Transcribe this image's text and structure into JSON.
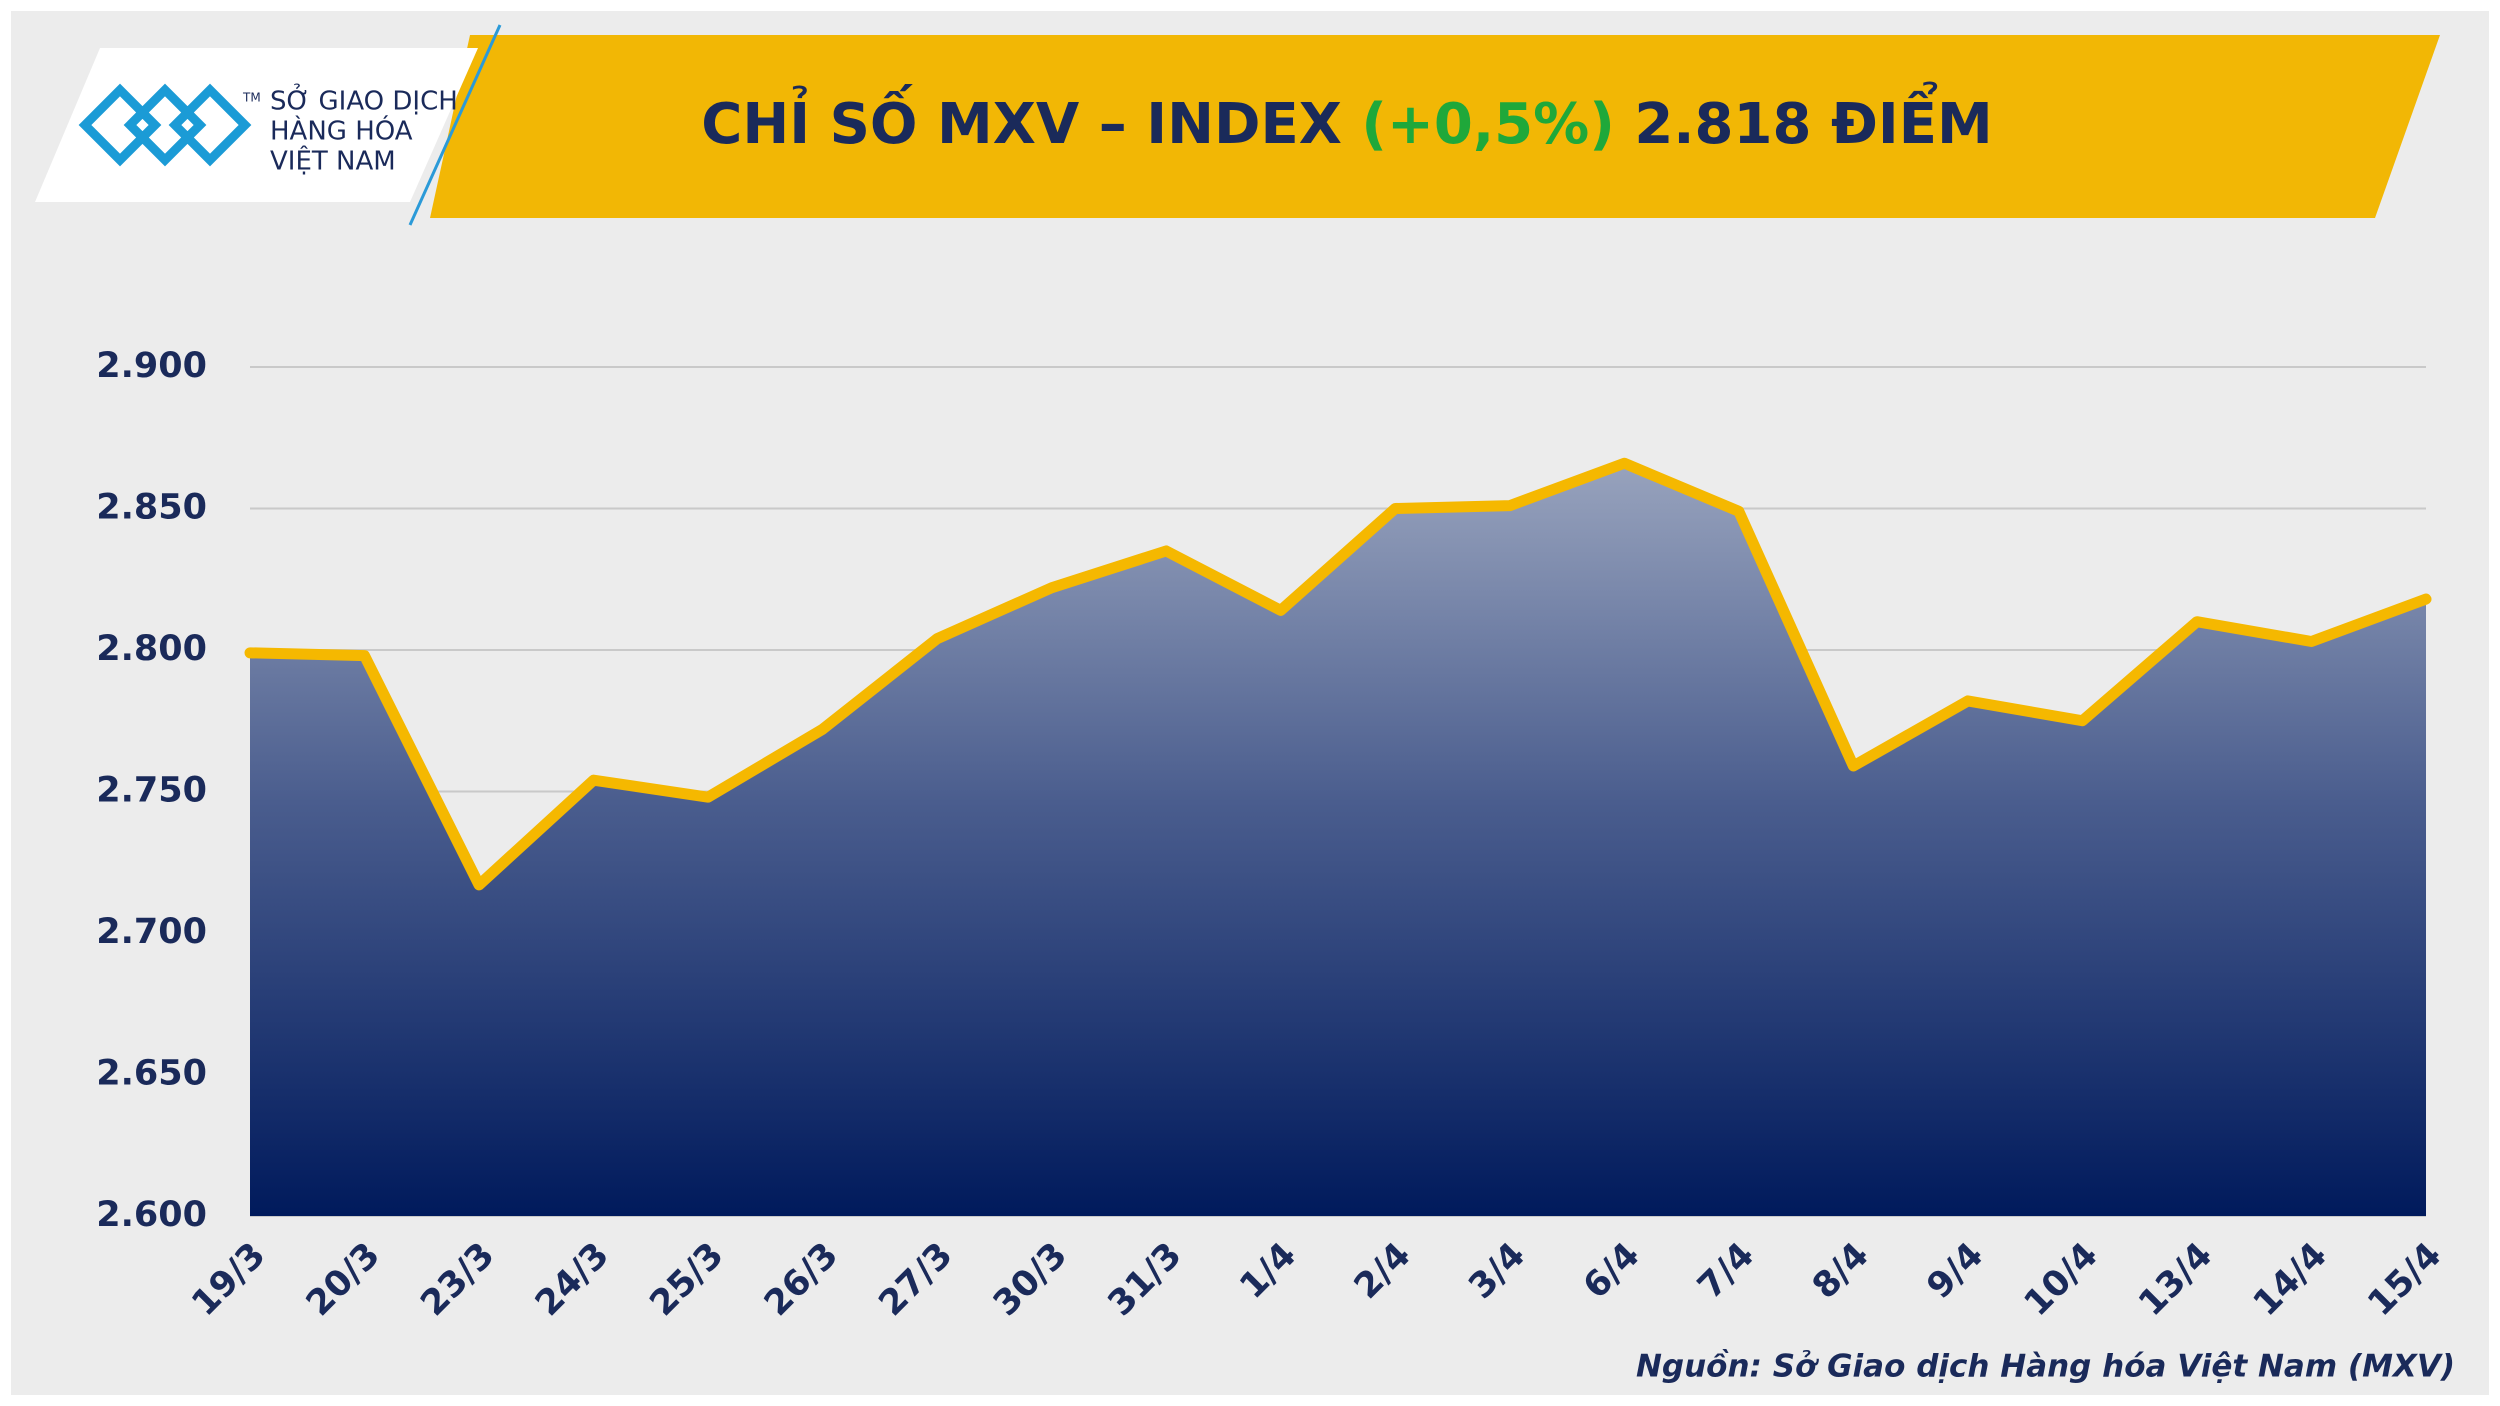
{
  "logo": {
    "trademark": "TM",
    "lines": [
      "SỞ GIAO DỊCH",
      "HÀNG HÓA",
      "VIỆT NAM"
    ]
  },
  "chart_data": {
    "type": "area",
    "title": {
      "prefix": "CHỈ SỐ MXV – INDEX",
      "change": "(+0,5%)",
      "suffix": "2.818 ĐIỂM"
    },
    "categories": [
      "19/3",
      "20/3",
      "23/3",
      "24/3",
      "25/3",
      "26/3",
      "27/3",
      "30/3",
      "31/3",
      "1/4",
      "2/4",
      "3/4",
      "6/4",
      "7/4",
      "8/4",
      "9/4",
      "10/4",
      "13/4",
      "14/4",
      "15/4"
    ],
    "values": [
      2799,
      2798,
      2717,
      2754,
      2748,
      2772,
      2804,
      2822,
      2835,
      2814,
      2850,
      2851,
      2866,
      2849,
      2759,
      2782,
      2775,
      2810,
      2803,
      2818
    ],
    "color": "#f5b800",
    "ylim": [
      2600,
      2900
    ],
    "yticks": [
      {
        "value": 2600,
        "label": "2.600"
      },
      {
        "value": 2650,
        "label": "2.650"
      },
      {
        "value": 2700,
        "label": "2.700"
      },
      {
        "value": 2750,
        "label": "2.750"
      },
      {
        "value": 2800,
        "label": "2.800"
      },
      {
        "value": 2850,
        "label": "2.850"
      },
      {
        "value": 2900,
        "label": "2.900"
      }
    ],
    "grid": true,
    "source": "Nguồn: Sở Giao dịch Hàng hóa Việt Nam (MXV)"
  }
}
